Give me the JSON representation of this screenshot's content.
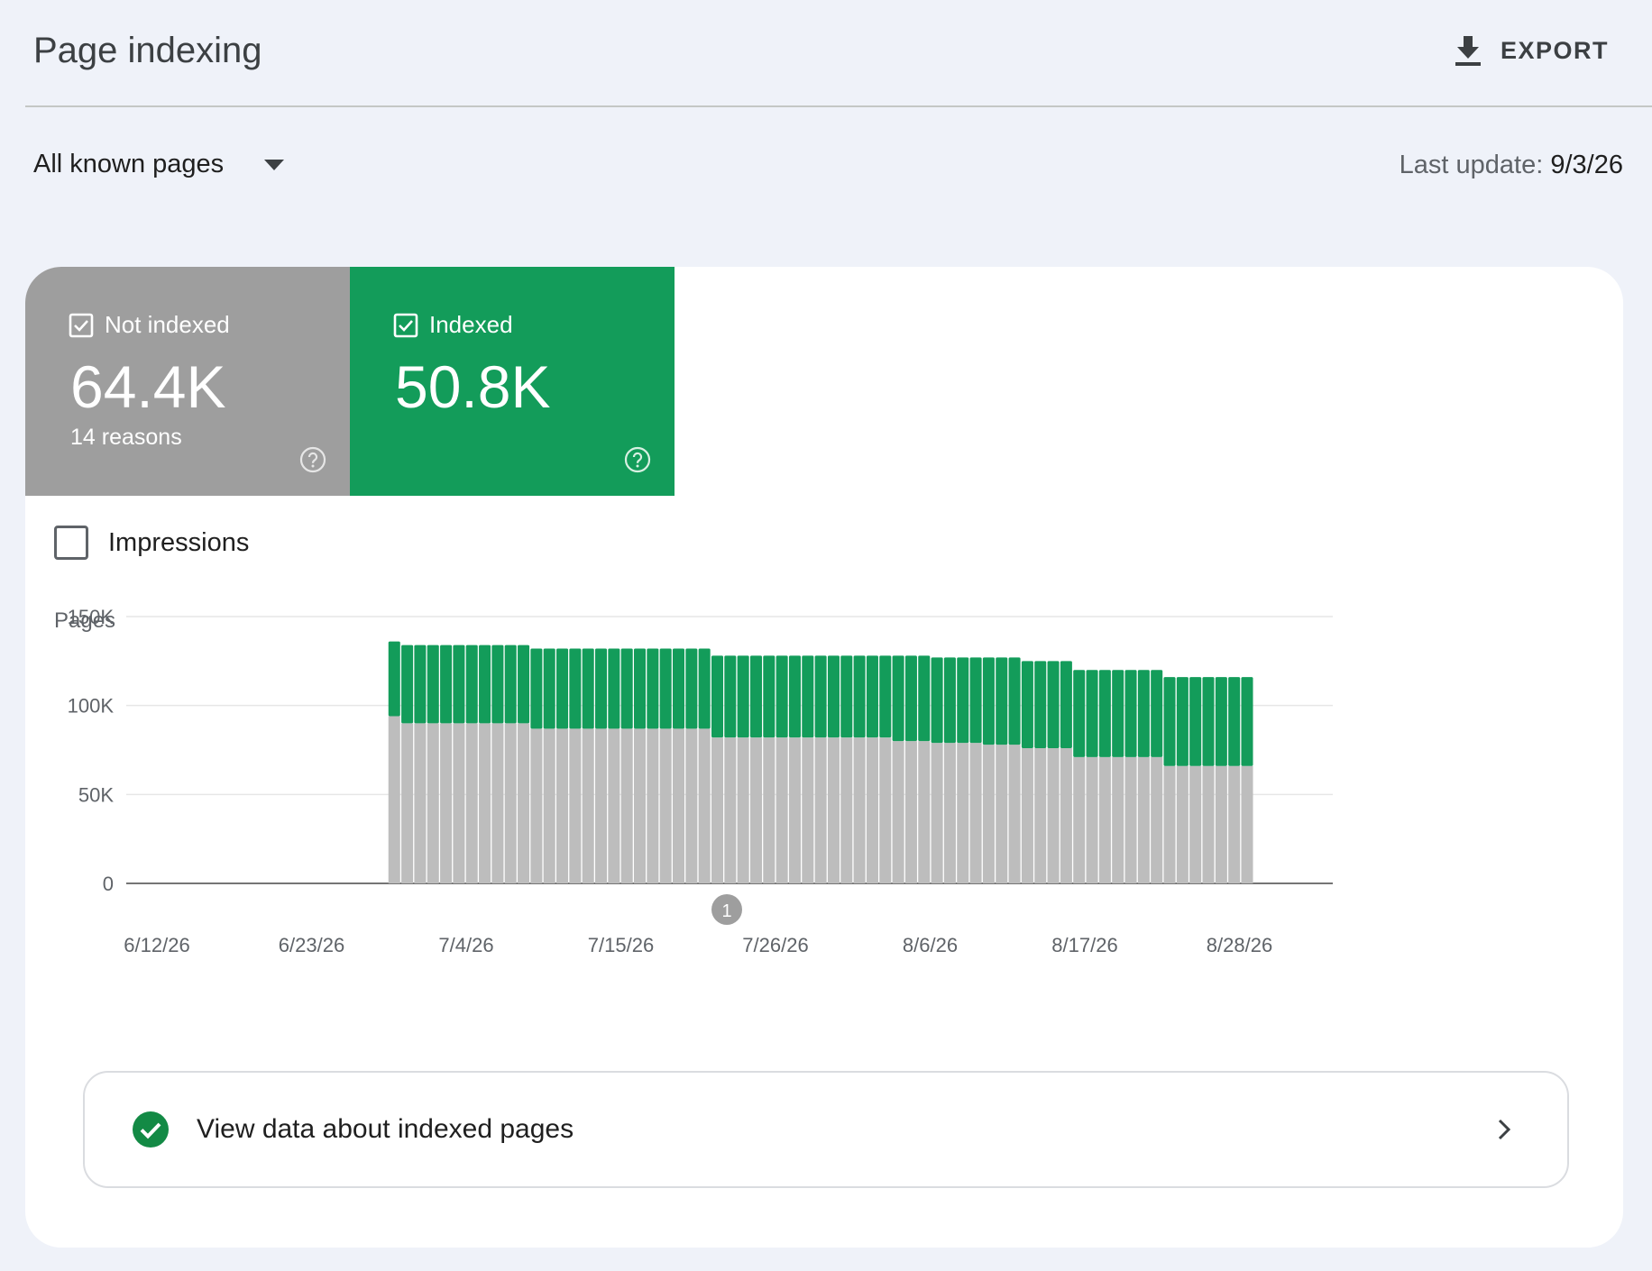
{
  "header": {
    "title": "Page indexing",
    "export_label": "EXPORT"
  },
  "filter": {
    "selected": "All known pages"
  },
  "last_update": {
    "label": "Last update:",
    "value": "9/3/26"
  },
  "tiles": {
    "not_indexed": {
      "label": "Not indexed",
      "value": "64.4K",
      "sub": "14 reasons",
      "color": "#9e9e9e",
      "checked": true
    },
    "indexed": {
      "label": "Indexed",
      "value": "50.8K",
      "color": "#139c5a",
      "checked": true
    }
  },
  "impressions": {
    "label": "Impressions",
    "checked": false
  },
  "chart_data": {
    "type": "bar",
    "stacked": true,
    "ylabel": "Pages",
    "ylim": [
      0,
      150000
    ],
    "yticks": [
      "0",
      "50K",
      "100K",
      "150K"
    ],
    "xticks": [
      "6/12/26",
      "6/23/26",
      "7/4/26",
      "7/15/26",
      "7/26/26",
      "8/6/26",
      "8/17/26",
      "8/28/26"
    ],
    "x_start": "6/12/26",
    "x_end": "9/3/26",
    "annotation": {
      "label": "1",
      "date": "7/25/26"
    },
    "grid": true,
    "colors": {
      "not_indexed": "#bdbdbd",
      "indexed": "#139c5a"
    },
    "series": [
      {
        "name": "Not indexed",
        "values": [
          0,
          0,
          0,
          0,
          0,
          0,
          0,
          0,
          0,
          0,
          0,
          0,
          0,
          0,
          0,
          0,
          0,
          0,
          0,
          94000,
          90000,
          90000,
          90000,
          90000,
          90000,
          90000,
          90000,
          90000,
          90000,
          90000,
          87000,
          87000,
          87000,
          87000,
          87000,
          87000,
          87000,
          87000,
          87000,
          87000,
          87000,
          87000,
          87000,
          87000,
          82000,
          82000,
          82000,
          82000,
          82000,
          82000,
          82000,
          82000,
          82000,
          82000,
          82000,
          82000,
          82000,
          82000,
          80000,
          80000,
          80000,
          79000,
          79000,
          79000,
          79000,
          78000,
          78000,
          78000,
          76000,
          76000,
          76000,
          76000,
          71000,
          71000,
          71000,
          71000,
          71000,
          71000,
          71000,
          66000,
          66000,
          66000,
          66000,
          66000,
          66000,
          66000
        ]
      },
      {
        "name": "Indexed",
        "values": [
          0,
          0,
          0,
          0,
          0,
          0,
          0,
          0,
          0,
          0,
          0,
          0,
          0,
          0,
          0,
          0,
          0,
          0,
          0,
          42000,
          44000,
          44000,
          44000,
          44000,
          44000,
          44000,
          44000,
          44000,
          44000,
          44000,
          45000,
          45000,
          45000,
          45000,
          45000,
          45000,
          45000,
          45000,
          45000,
          45000,
          45000,
          45000,
          45000,
          45000,
          46000,
          46000,
          46000,
          46000,
          46000,
          46000,
          46000,
          46000,
          46000,
          46000,
          46000,
          46000,
          46000,
          46000,
          48000,
          48000,
          48000,
          48000,
          48000,
          48000,
          48000,
          49000,
          49000,
          49000,
          49000,
          49000,
          49000,
          49000,
          49000,
          49000,
          49000,
          49000,
          49000,
          49000,
          49000,
          50000,
          50000,
          50000,
          50000,
          50000,
          50000,
          50000
        ]
      }
    ]
  },
  "footer_link": {
    "label": "View data about indexed pages"
  }
}
